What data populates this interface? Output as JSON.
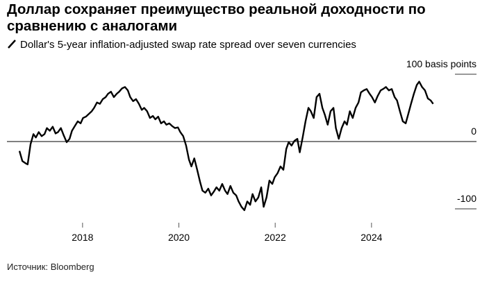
{
  "chart_data": {
    "type": "line",
    "title": "Доллар сохраняет преимущество реальной доходности по сравнению с аналогами",
    "subtitle": "Dollar's 5-year inflation-adjusted swap rate spread over seven currencies",
    "source": "Источник: Bloomberg",
    "x": [
      2016.69,
      2016.75,
      2016.81,
      2016.86,
      2016.92,
      2016.98,
      2017.03,
      2017.09,
      2017.15,
      2017.21,
      2017.26,
      2017.32,
      2017.38,
      2017.44,
      2017.49,
      2017.55,
      2017.61,
      2017.67,
      2017.73,
      2017.78,
      2017.84,
      2017.9,
      2017.96,
      2018.01,
      2018.07,
      2018.13,
      2018.19,
      2018.24,
      2018.3,
      2018.36,
      2018.42,
      2018.48,
      2018.53,
      2018.59,
      2018.65,
      2018.71,
      2018.76,
      2018.82,
      2018.88,
      2018.94,
      2018.99,
      2019.05,
      2019.11,
      2019.17,
      2019.23,
      2019.28,
      2019.34,
      2019.4,
      2019.46,
      2019.51,
      2019.57,
      2019.63,
      2019.69,
      2019.74,
      2019.8,
      2019.86,
      2019.92,
      2019.98,
      2020.03,
      2020.09,
      2020.15,
      2020.21,
      2020.26,
      2020.32,
      2020.38,
      2020.44,
      2020.49,
      2020.55,
      2020.61,
      2020.67,
      2020.73,
      2020.78,
      2020.84,
      2020.9,
      2020.96,
      2021.01,
      2021.07,
      2021.13,
      2021.19,
      2021.24,
      2021.3,
      2021.36,
      2021.42,
      2021.48,
      2021.53,
      2021.59,
      2021.65,
      2021.71,
      2021.76,
      2021.82,
      2021.88,
      2021.94,
      2021.99,
      2022.05,
      2022.11,
      2022.17,
      2022.23,
      2022.28,
      2022.34,
      2022.4,
      2022.46,
      2022.51,
      2022.57,
      2022.63,
      2022.69,
      2022.74,
      2022.8,
      2022.86,
      2022.92,
      2022.98,
      2023.03,
      2023.09,
      2023.15,
      2023.21,
      2023.26,
      2023.32,
      2023.38,
      2023.44,
      2023.49,
      2023.55,
      2023.61,
      2023.67,
      2023.73,
      2023.78,
      2023.84,
      2023.9,
      2023.96,
      2024.01,
      2024.07,
      2024.13,
      2024.19,
      2024.24,
      2024.3,
      2024.36,
      2024.42,
      2024.48,
      2024.53,
      2024.59,
      2024.65,
      2024.71,
      2024.76,
      2024.82,
      2024.88,
      2024.94,
      2024.99,
      2025.05,
      2025.11,
      2025.17,
      2025.23,
      2025.28
    ],
    "series": [
      {
        "color": "#000000",
        "values": [
          -14,
          -29,
          -32,
          -34,
          -4,
          11,
          6,
          14,
          8,
          11,
          20,
          16,
          22,
          12,
          14,
          20,
          9,
          -1,
          4,
          16,
          23,
          30,
          27,
          35,
          37,
          41,
          45,
          50,
          58,
          56,
          63,
          66,
          71,
          74,
          66,
          71,
          74,
          79,
          81,
          76,
          66,
          60,
          63,
          56,
          47,
          50,
          45,
          35,
          38,
          33,
          37,
          27,
          30,
          25,
          27,
          23,
          20,
          21,
          14,
          8,
          -6,
          -27,
          -37,
          -25,
          -42,
          -60,
          -73,
          -76,
          -70,
          -80,
          -74,
          -68,
          -73,
          -63,
          -73,
          -78,
          -66,
          -76,
          -80,
          -89,
          -97,
          -102,
          -89,
          -94,
          -78,
          -89,
          -83,
          -68,
          -97,
          -83,
          -58,
          -63,
          -53,
          -47,
          -37,
          -42,
          -11,
          -1,
          -6,
          1,
          4,
          -16,
          6,
          30,
          50,
          45,
          35,
          66,
          71,
          50,
          40,
          25,
          45,
          50,
          20,
          4,
          20,
          30,
          25,
          45,
          35,
          50,
          58,
          73,
          76,
          78,
          71,
          66,
          58,
          68,
          76,
          78,
          81,
          76,
          78,
          66,
          61,
          45,
          30,
          27,
          40,
          56,
          71,
          84,
          89,
          81,
          76,
          64,
          61,
          56
        ]
      }
    ],
    "xlim": [
      2016.43,
      2026.18
    ],
    "xticks": [
      2018,
      2020,
      2022,
      2024
    ],
    "ylim": [
      -125,
      117.5
    ],
    "yticks": [
      -100,
      0,
      {
        "value": 100,
        "label": "100 basis points"
      }
    ]
  }
}
